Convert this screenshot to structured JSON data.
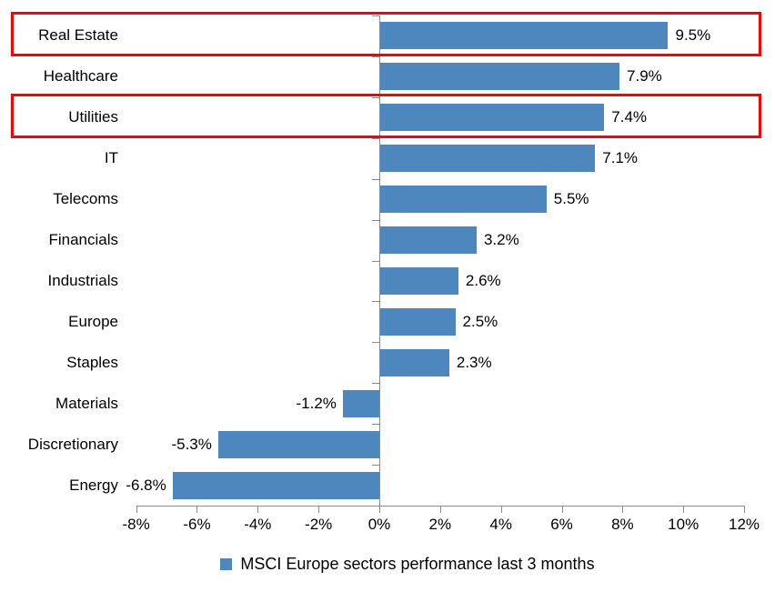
{
  "chart_data": {
    "type": "bar",
    "orientation": "horizontal",
    "title": "",
    "categories": [
      "Real Estate",
      "Healthcare",
      "Utilities",
      "IT",
      "Telecoms",
      "Financials",
      "Industrials",
      "Europe",
      "Staples",
      "Materials",
      "Discretionary",
      "Energy"
    ],
    "values": [
      9.5,
      7.9,
      7.4,
      7.1,
      5.5,
      3.2,
      2.6,
      2.5,
      2.3,
      -1.2,
      -5.3,
      -6.8
    ],
    "data_labels": [
      "9.5%",
      "7.9%",
      "7.4%",
      "7.1%",
      "5.5%",
      "3.2%",
      "2.6%",
      "2.5%",
      "2.3%",
      "-1.2%",
      "-5.3%",
      "-6.8%"
    ],
    "x_axis": {
      "min": -8,
      "max": 12,
      "step": 2,
      "tick_labels": [
        "-8%",
        "-6%",
        "-4%",
        "-2%",
        "0%",
        "2%",
        "4%",
        "6%",
        "8%",
        "10%",
        "12%"
      ]
    },
    "grid": false,
    "legend_position": "bottom-center",
    "legend_label": "MSCI Europe sectors performance last 3 months",
    "bar_color": "#4e86be",
    "axis_color": "#8c8c8c",
    "highlight_color": "#ff0000",
    "highlighted_categories": [
      "Real Estate",
      "Utilities"
    ],
    "highlighted_indices": [
      0,
      2
    ]
  }
}
